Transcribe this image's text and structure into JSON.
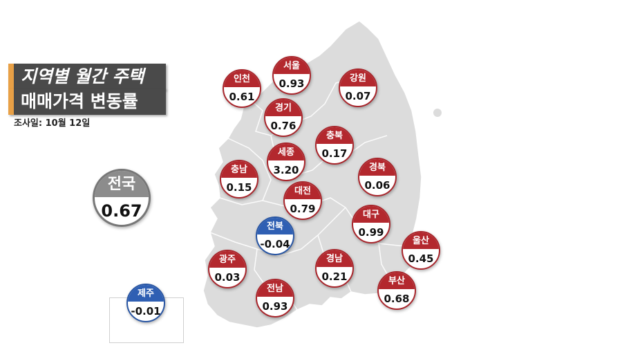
{
  "title": {
    "line1": "지역별 월간 주택",
    "line2": "매매가격 변동률",
    "survey_date": "조사일: 10월 12일"
  },
  "national": {
    "name": "전국",
    "value": "0.67"
  },
  "regions": [
    {
      "id": "incheon",
      "name": "인천",
      "value": "0.61",
      "trend": "up"
    },
    {
      "id": "seoul",
      "name": "서울",
      "value": "0.93",
      "trend": "up"
    },
    {
      "id": "gangwon",
      "name": "강원",
      "value": "0.07",
      "trend": "up"
    },
    {
      "id": "gyeonggi",
      "name": "경기",
      "value": "0.76",
      "trend": "up"
    },
    {
      "id": "chungbuk",
      "name": "충북",
      "value": "0.17",
      "trend": "up"
    },
    {
      "id": "sejong",
      "name": "세종",
      "value": "3.20",
      "trend": "up"
    },
    {
      "id": "chungnam",
      "name": "충남",
      "value": "0.15",
      "trend": "up"
    },
    {
      "id": "gyeongbuk",
      "name": "경북",
      "value": "0.06",
      "trend": "up"
    },
    {
      "id": "daejeon",
      "name": "대전",
      "value": "0.79",
      "trend": "up"
    },
    {
      "id": "daegu",
      "name": "대구",
      "value": "0.99",
      "trend": "up"
    },
    {
      "id": "jeonbuk",
      "name": "전북",
      "value": "-0.04",
      "trend": "down"
    },
    {
      "id": "ulsan",
      "name": "울산",
      "value": "0.45",
      "trend": "up"
    },
    {
      "id": "gwangju",
      "name": "광주",
      "value": "0.03",
      "trend": "up"
    },
    {
      "id": "gyeongnam",
      "name": "경남",
      "value": "0.21",
      "trend": "up"
    },
    {
      "id": "jeonnam",
      "name": "전남",
      "value": "0.93",
      "trend": "up"
    },
    {
      "id": "busan",
      "name": "부산",
      "value": "0.68",
      "trend": "up"
    },
    {
      "id": "jeju",
      "name": "제주",
      "value": "-0.01",
      "trend": "down"
    }
  ],
  "colors": {
    "increase": "#b3282e",
    "decrease": "#2f5fb3",
    "national": "#8c8c8c",
    "land": "#dcdcdc",
    "title_bg": "#4a4a4a",
    "title_accent": "#e8a046"
  }
}
